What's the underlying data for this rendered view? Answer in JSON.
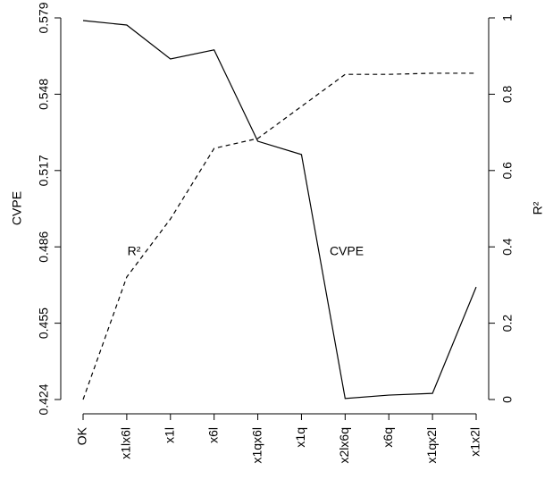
{
  "chart_data": {
    "type": "line",
    "y_label": "CVPE",
    "y2_label": "R²",
    "categories": [
      "OK",
      "x1lx6l",
      "x1l",
      "x6l",
      "x1qx6l",
      "x1q",
      "x2lx6q",
      "x6q",
      "x1qx2l",
      "x1x2l"
    ],
    "series": [
      {
        "name": "CVPE",
        "color": "#000000",
        "linestyle": "solid",
        "values": [
          0.5779,
          0.5761,
          0.5623,
          0.566,
          0.5289,
          0.5235,
          0.4244,
          0.4258,
          0.4265,
          0.4697
        ]
      },
      {
        "name": "R²",
        "color": "#000000",
        "linestyle": "dashed",
        "axis": "y2",
        "values": [
          0,
          0.321,
          0.473,
          0.658,
          0.684,
          0.768,
          0.852,
          0.852,
          0.855,
          0.855
        ]
      }
    ],
    "ylim": [
      0.424,
      0.579
    ],
    "yticks": [
      0.424,
      0.455,
      0.486,
      0.517,
      0.548,
      0.579
    ],
    "y2lim": [
      0,
      1
    ],
    "y2ticks": [
      0,
      0.2,
      0.4,
      0.6,
      0.8,
      1
    ],
    "grid": false
  }
}
